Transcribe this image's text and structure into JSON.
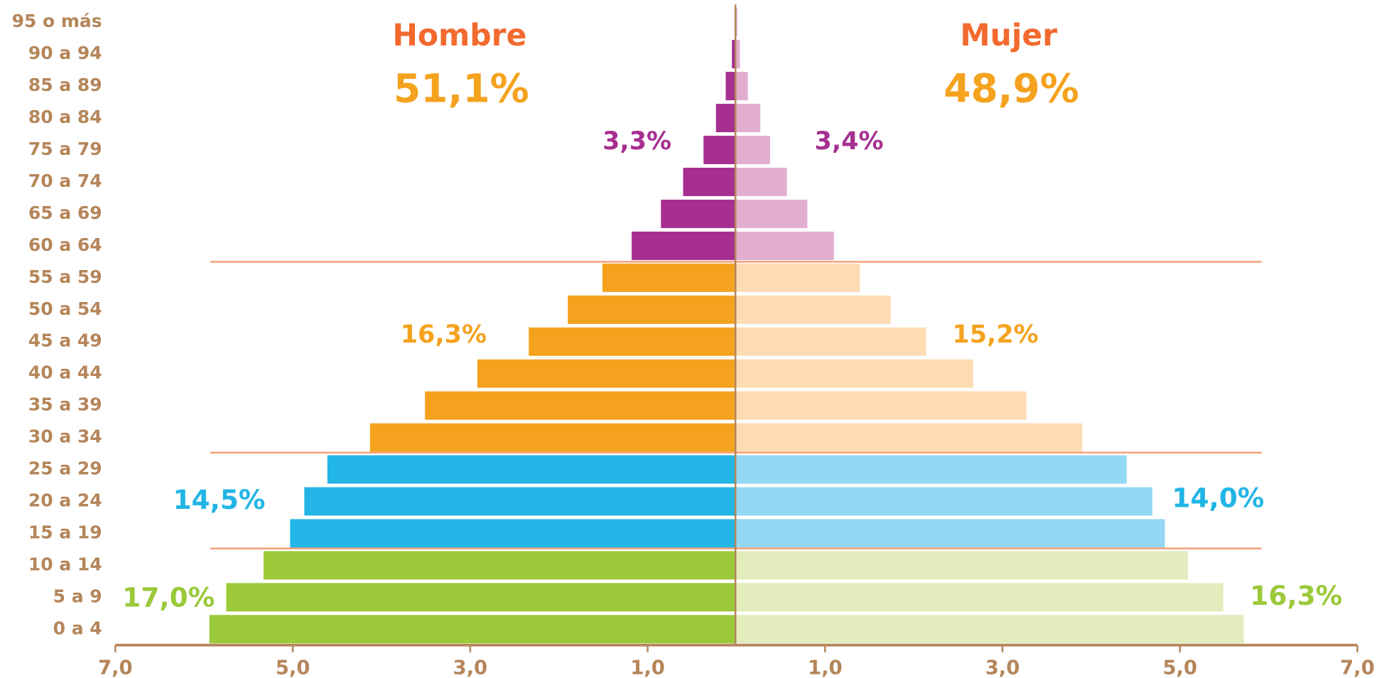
{
  "chart_data": {
    "type": "pyramid",
    "categories": [
      "0 a 4",
      "5 a 9",
      "10 a 14",
      "15 a 19",
      "20 a 24",
      "25 a 29",
      "30 a 34",
      "35 a 39",
      "40 a 44",
      "45 a 49",
      "50 a 54",
      "55 a 59",
      "60 a 64",
      "65 a 69",
      "70 a 74",
      "75 a 79",
      "80 a 84",
      "85 a 89",
      "90 a 94",
      "95 o más"
    ],
    "series": [
      {
        "name": "Hombre",
        "color": "#f26a2e",
        "values": [
          5.93,
          5.74,
          5.32,
          5.02,
          4.86,
          4.6,
          4.12,
          3.5,
          2.91,
          2.33,
          1.89,
          1.5,
          1.17,
          0.84,
          0.59,
          0.36,
          0.22,
          0.11,
          0.04,
          0.01
        ],
        "colors": [
          "#9bc93a",
          "#9bc93a",
          "#9bc93a",
          "#22b5e5",
          "#22b5e5",
          "#22b5e5",
          "#f5a21e",
          "#f5a21e",
          "#f5a21e",
          "#f5a21e",
          "#f5a21e",
          "#f5a21e",
          "#a62f91",
          "#a62f91",
          "#a62f91",
          "#a62f91",
          "#a62f91",
          "#a62f91",
          "#a62f91",
          "#a62f91"
        ]
      },
      {
        "name": "Mujer",
        "color": "#f26a2e",
        "values": [
          5.73,
          5.5,
          5.1,
          4.84,
          4.7,
          4.41,
          3.91,
          3.28,
          2.68,
          2.15,
          1.75,
          1.4,
          1.11,
          0.81,
          0.58,
          0.39,
          0.28,
          0.14,
          0.05,
          0.02
        ],
        "colors": [
          "#e3ecbd",
          "#e3ecbd",
          "#e3ecbd",
          "#95d8f3",
          "#95d8f3",
          "#95d8f3",
          "#fddcb4",
          "#fddcb4",
          "#fddcb4",
          "#fddcb4",
          "#fddcb4",
          "#fddcb4",
          "#e2aed0",
          "#e2aed0",
          "#e2aed0",
          "#e2aed0",
          "#e2aed0",
          "#e2aed0",
          "#e2aed0",
          "#e2aed0"
        ]
      }
    ],
    "annotations": [
      {
        "text": "51,1%",
        "color": "#f5a21e"
      },
      {
        "text": "48,9%",
        "color": "#f5a21e"
      },
      {
        "text": "3,3%",
        "color": "#a62f91"
      },
      {
        "text": "3,4%",
        "color": "#a62f91"
      },
      {
        "text": "16,3%",
        "color": "#f5a21e"
      },
      {
        "text": "15,2%",
        "color": "#f5a21e"
      },
      {
        "text": "14,5%",
        "color": "#22b5e5"
      },
      {
        "text": "14,0%",
        "color": "#22b5e5"
      },
      {
        "text": "17,0%",
        "color": "#9bc93a"
      },
      {
        "text": "16,3%",
        "color": "#9bc93a"
      }
    ],
    "xlim": [
      -7,
      7
    ],
    "xticks": [
      {
        "value": -7,
        "label": "7,0"
      },
      {
        "value": -5,
        "label": "5,0"
      },
      {
        "value": -3,
        "label": "3,0"
      },
      {
        "value": -1,
        "label": "1,0"
      },
      {
        "value": 1,
        "label": "1,0"
      },
      {
        "value": 3,
        "label": "3,0"
      },
      {
        "value": 5,
        "label": "5,0"
      },
      {
        "value": 7,
        "label": "7,0"
      }
    ]
  }
}
